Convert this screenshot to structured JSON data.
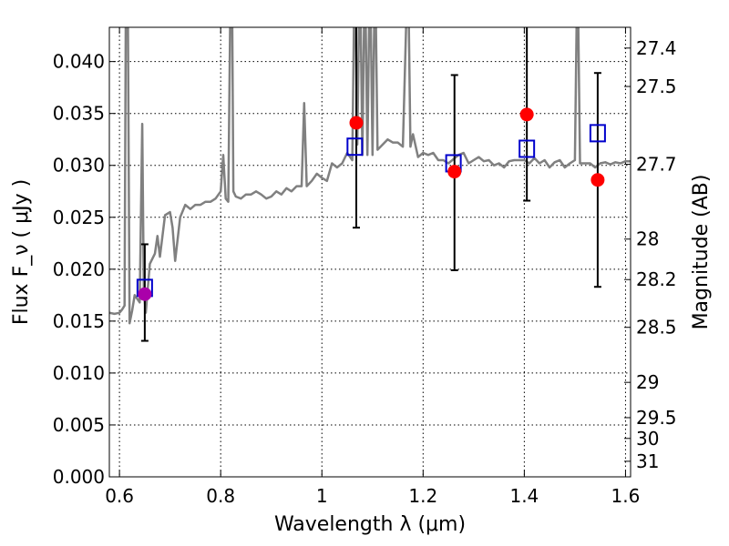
{
  "chart_data": {
    "type": "scatter",
    "xlabel": "Wavelength  λ (μm)",
    "ylabel": "Flux  F_ν  ( μJy )",
    "ylabel_right": "Magnitude (AB)",
    "xlim": [
      0.58,
      1.61
    ],
    "ylim": [
      0.0,
      0.0433
    ],
    "grid": true,
    "x_ticks": [
      {
        "value": 0.6,
        "label": "0.6"
      },
      {
        "value": 0.8,
        "label": "0.8"
      },
      {
        "value": 1.0,
        "label": "1"
      },
      {
        "value": 1.2,
        "label": "1.2"
      },
      {
        "value": 1.4,
        "label": "1.4"
      },
      {
        "value": 1.6,
        "label": "1.6"
      }
    ],
    "y_ticks": [
      {
        "value": 0.0,
        "label": "0.000"
      },
      {
        "value": 0.005,
        "label": "0.005"
      },
      {
        "value": 0.01,
        "label": "0.010"
      },
      {
        "value": 0.015,
        "label": "0.015"
      },
      {
        "value": 0.02,
        "label": "0.020"
      },
      {
        "value": 0.025,
        "label": "0.025"
      },
      {
        "value": 0.03,
        "label": "0.030"
      },
      {
        "value": 0.035,
        "label": "0.035"
      },
      {
        "value": 0.04,
        "label": "0.040"
      }
    ],
    "y2_ticks": [
      {
        "flux": 0.0413,
        "label": "27.4"
      },
      {
        "flux": 0.0376,
        "label": "27.5"
      },
      {
        "flux": 0.0301,
        "label": "27.7"
      },
      {
        "flux": 0.0229,
        "label": "28"
      },
      {
        "flux": 0.019,
        "label": "28.2"
      },
      {
        "flux": 0.0144,
        "label": "28.5"
      },
      {
        "flux": 0.0091,
        "label": "29"
      },
      {
        "flux": 0.0057,
        "label": "29.5"
      },
      {
        "flux": 0.0037,
        "label": "30"
      },
      {
        "flux": 0.0015,
        "label": "31"
      }
    ],
    "model_spectrum": {
      "color": "#808080",
      "x": [
        0.58,
        0.59,
        0.6,
        0.605,
        0.61,
        0.613,
        0.616,
        0.62,
        0.625,
        0.63,
        0.64,
        0.645,
        0.648,
        0.652,
        0.66,
        0.67,
        0.675,
        0.68,
        0.69,
        0.7,
        0.705,
        0.71,
        0.72,
        0.73,
        0.74,
        0.75,
        0.76,
        0.77,
        0.78,
        0.79,
        0.8,
        0.805,
        0.81,
        0.815,
        0.82,
        0.822,
        0.825,
        0.83,
        0.84,
        0.85,
        0.86,
        0.87,
        0.88,
        0.89,
        0.9,
        0.91,
        0.92,
        0.93,
        0.94,
        0.95,
        0.96,
        0.965,
        0.97,
        0.98,
        0.99,
        1.0,
        1.01,
        1.02,
        1.03,
        1.04,
        1.05,
        1.06,
        1.065,
        1.07,
        1.075,
        1.08,
        1.085,
        1.09,
        1.095,
        1.1,
        1.105,
        1.11,
        1.12,
        1.13,
        1.14,
        1.15,
        1.16,
        1.17,
        1.175,
        1.18,
        1.19,
        1.2,
        1.21,
        1.22,
        1.23,
        1.24,
        1.25,
        1.26,
        1.27,
        1.28,
        1.29,
        1.3,
        1.31,
        1.32,
        1.33,
        1.34,
        1.35,
        1.36,
        1.37,
        1.38,
        1.39,
        1.4,
        1.41,
        1.42,
        1.43,
        1.44,
        1.45,
        1.46,
        1.47,
        1.48,
        1.49,
        1.5,
        1.505,
        1.51,
        1.52,
        1.53,
        1.54,
        1.55,
        1.56,
        1.57,
        1.58,
        1.59,
        1.6,
        1.61
      ],
      "y": [
        0.0158,
        0.0157,
        0.0158,
        0.0161,
        0.0165,
        0.05,
        0.05,
        0.0148,
        0.016,
        0.0175,
        0.0168,
        0.034,
        0.018,
        0.0158,
        0.0205,
        0.0215,
        0.0232,
        0.0212,
        0.0252,
        0.0255,
        0.024,
        0.0208,
        0.025,
        0.0262,
        0.0258,
        0.0262,
        0.0262,
        0.0265,
        0.0265,
        0.0268,
        0.0275,
        0.031,
        0.0268,
        0.0265,
        0.05,
        0.05,
        0.0275,
        0.027,
        0.0268,
        0.0272,
        0.0272,
        0.0275,
        0.0272,
        0.0268,
        0.027,
        0.0275,
        0.0272,
        0.0278,
        0.0275,
        0.028,
        0.028,
        0.036,
        0.028,
        0.0285,
        0.0292,
        0.0288,
        0.0285,
        0.0302,
        0.0298,
        0.0302,
        0.0312,
        0.0305,
        0.05,
        0.032,
        0.05,
        0.031,
        0.05,
        0.031,
        0.05,
        0.031,
        0.05,
        0.0315,
        0.032,
        0.0325,
        0.0322,
        0.0322,
        0.0318,
        0.05,
        0.0318,
        0.033,
        0.0308,
        0.0312,
        0.031,
        0.0312,
        0.0305,
        0.0305,
        0.0302,
        0.0306,
        0.031,
        0.0312,
        0.0302,
        0.0305,
        0.0308,
        0.0304,
        0.0305,
        0.03,
        0.0302,
        0.0298,
        0.0304,
        0.0305,
        0.0305,
        0.0305,
        0.0302,
        0.0307,
        0.0302,
        0.0305,
        0.0298,
        0.0303,
        0.0305,
        0.0298,
        0.0302,
        0.0305,
        0.05,
        0.0302,
        0.0302,
        0.0302,
        0.0298,
        0.0302,
        0.0303,
        0.0301,
        0.0303,
        0.0302,
        0.0304,
        0.0304
      ]
    },
    "model_points": {
      "marker": "open-square",
      "color": "#0000cc",
      "x": [
        0.65,
        1.065,
        1.26,
        1.405,
        1.545
      ],
      "y": [
        0.0182,
        0.0318,
        0.0302,
        0.0316,
        0.0331
      ]
    },
    "observed_points": {
      "marker": "filled-circle",
      "x": [
        0.65,
        1.068,
        1.262,
        1.405,
        1.545
      ],
      "y": [
        0.0176,
        0.0341,
        0.0294,
        0.0349,
        0.0286
      ],
      "yerr_low": [
        0.0131,
        0.024,
        0.0199,
        0.0266,
        0.0183
      ],
      "yerr_high": [
        0.0224,
        0.0433,
        0.0387,
        0.0433,
        0.0389
      ],
      "colors": [
        "#aa00aa",
        "#ff0000",
        "#ff0000",
        "#ff0000",
        "#ff0000"
      ]
    }
  }
}
